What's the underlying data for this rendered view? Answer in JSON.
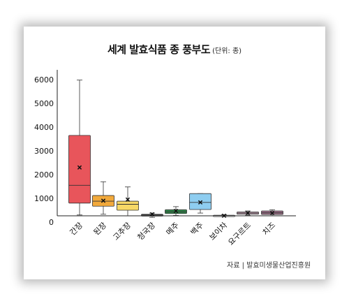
{
  "title": "세계 발효식품 종 풍부도",
  "unit": "(단위: 종)",
  "source": "자료 | 발효미생물산업진흥원",
  "chart_data": {
    "type": "box",
    "title": "세계 발효식품 종 풍부도",
    "subtitle": "(단위: 종)",
    "ylim": [
      0,
      6000
    ],
    "yticks": [
      0,
      1000,
      2000,
      3000,
      4000,
      5000,
      6000
    ],
    "grid": false,
    "categories": [
      "간장",
      "된장",
      "고추장",
      "청국장",
      "메주",
      "백주",
      "보이차",
      "요구르트",
      "치즈"
    ],
    "colors": [
      "#e8555b",
      "#f2a93b",
      "#f7d866",
      "#4a4a4a",
      "#2f8a4a",
      "#8ecdf0",
      "#ffffff",
      "#c9a6b7",
      "#9c6f88"
    ],
    "boxes": [
      {
        "min": 300,
        "q1": 800,
        "median": 1550,
        "q3": 3650,
        "max": 5980,
        "mean": 2300
      },
      {
        "min": 330,
        "q1": 670,
        "median": 880,
        "q3": 1120,
        "max": 1700,
        "mean": 900
      },
      {
        "min": 260,
        "q1": 500,
        "median": 750,
        "q3": 880,
        "max": 1480,
        "mean": 950
      },
      {
        "min": 200,
        "q1": 250,
        "median": 300,
        "q3": 330,
        "max": 380,
        "mean": 330
      },
      {
        "min": 280,
        "q1": 360,
        "median": 430,
        "q3": 520,
        "max": 650,
        "mean": 470
      },
      {
        "min": 380,
        "q1": 530,
        "median": 830,
        "q3": 1200,
        "max": 1200,
        "mean": 830
      },
      {
        "min": 230,
        "q1": 250,
        "median": 270,
        "q3": 290,
        "max": 310,
        "mean": 270
      },
      {
        "min": 280,
        "q1": 330,
        "median": 380,
        "q3": 430,
        "max": 470,
        "mean": 380
      },
      {
        "min": 260,
        "q1": 320,
        "median": 390,
        "q3": 470,
        "max": 520,
        "mean": 380
      }
    ]
  }
}
